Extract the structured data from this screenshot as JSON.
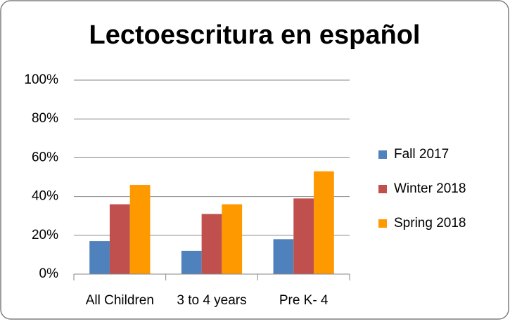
{
  "chart_data": {
    "type": "bar",
    "title": "Lectoescritura en español",
    "categories": [
      "All Children",
      "3 to 4 years",
      "Pre K- 4"
    ],
    "series": [
      {
        "name": "Fall 2017",
        "color": "#4f81bd",
        "values": [
          17,
          12,
          18
        ]
      },
      {
        "name": "Winter 2018",
        "color": "#c0504d",
        "values": [
          36,
          31,
          39
        ]
      },
      {
        "name": "Spring 2018",
        "color": "#ff9900",
        "values": [
          46,
          36,
          53
        ]
      }
    ],
    "ylim": [
      0,
      100
    ],
    "yticks": [
      {
        "value": 0,
        "label": "0%"
      },
      {
        "value": 20,
        "label": "20%"
      },
      {
        "value": 40,
        "label": "40%"
      },
      {
        "value": 60,
        "label": "60%"
      },
      {
        "value": 80,
        "label": "80%"
      },
      {
        "value": 100,
        "label": "100%"
      }
    ],
    "grid": true,
    "legend": "right"
  }
}
